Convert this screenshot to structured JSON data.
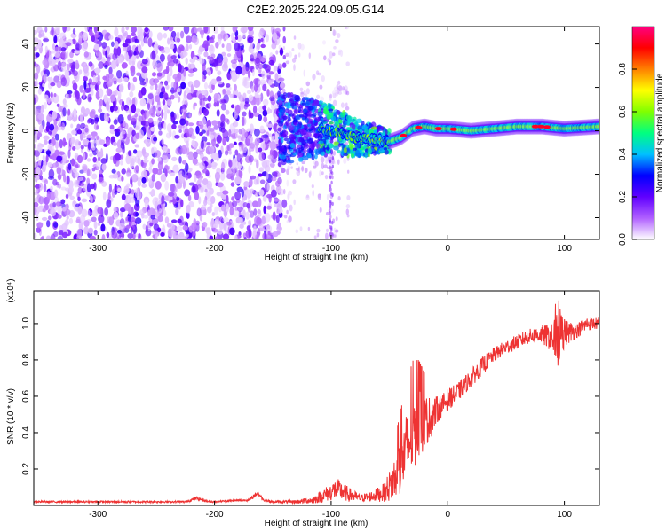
{
  "title": "C2E2.2025.224.09.05.G14",
  "chart_data": [
    {
      "type": "heatmap",
      "xlabel": "Height of straight line (km)",
      "ylabel": "Frequency (Hz)",
      "xlim": [
        -355,
        130
      ],
      "ylim": [
        -50,
        48
      ],
      "xticks": [
        -300,
        -200,
        -100,
        0,
        100
      ],
      "yticks": [
        -40,
        -20,
        0,
        20,
        40
      ],
      "colorbar": {
        "label": "Normalized spectral amplitude",
        "range": [
          0.0,
          1.0
        ],
        "ticks": [
          0.0,
          0.2,
          0.4,
          0.6,
          0.8
        ],
        "tick_labels": [
          "0.0",
          "0.2",
          "0.4",
          "0.6",
          "0.8"
        ],
        "colors": [
          "#ffffff",
          "#b060ff",
          "#6000ff",
          "#0000ff",
          "#00c0ff",
          "#00ff80",
          "#80ff00",
          "#ffff00",
          "#ff8000",
          "#ff0000",
          "#ff0080"
        ]
      },
      "regions": [
        {
          "x": [
            -355,
            -145
          ],
          "freq_spread": [
            -50,
            48
          ],
          "amplitude": [
            0.05,
            0.3
          ]
        },
        {
          "x": [
            -145,
            -50
          ],
          "freq_center": 0,
          "freq_spread": [
            -12,
            12
          ],
          "amplitude": [
            0.2,
            0.6
          ]
        },
        {
          "x": [
            -50,
            130
          ],
          "freq_center": [
            -4,
            4
          ],
          "freq_width": 3,
          "amplitude": [
            0.6,
            1.0
          ]
        }
      ],
      "ridge": {
        "x": [
          -110,
          -90,
          -80,
          -70,
          -60,
          -50,
          -40,
          -30,
          -20,
          -10,
          0,
          20,
          40,
          60,
          80,
          100,
          130
        ],
        "freq": [
          1,
          -1,
          -3,
          -4,
          -4,
          -5,
          -3,
          1,
          2,
          1,
          1,
          0,
          1,
          2,
          2,
          1,
          2
        ]
      }
    },
    {
      "type": "line",
      "xlabel": "Height of straight line (km)",
      "ylabel": "SNR (10 * v/v)",
      "y_multiplier": "(x10⁴)",
      "xlim": [
        -355,
        130
      ],
      "ylim": [
        0,
        1.18
      ],
      "xticks": [
        -300,
        -200,
        -100,
        0,
        100
      ],
      "yticks": [
        0.2,
        0.4,
        0.6,
        0.8,
        1.0
      ],
      "ytick_labels": [
        "0.2",
        "0.4",
        "0.6",
        "0.8",
        "1.0"
      ],
      "color": "#ee3333",
      "envelope": {
        "x": [
          -355,
          -300,
          -250,
          -225,
          -215,
          -205,
          -170,
          -163,
          -158,
          -150,
          -130,
          -115,
          -105,
          -95,
          -85,
          -75,
          -65,
          -55,
          -48,
          -42,
          -36,
          -30,
          -25,
          -20,
          -15,
          -10,
          -5,
          0,
          10,
          20,
          30,
          40,
          50,
          60,
          70,
          80,
          90,
          95,
          100,
          110,
          120,
          130
        ],
        "y": [
          0.02,
          0.02,
          0.02,
          0.02,
          0.04,
          0.02,
          0.03,
          0.07,
          0.03,
          0.02,
          0.02,
          0.03,
          0.06,
          0.09,
          0.06,
          0.04,
          0.05,
          0.07,
          0.12,
          0.2,
          0.3,
          0.4,
          0.44,
          0.46,
          0.48,
          0.52,
          0.55,
          0.58,
          0.63,
          0.7,
          0.77,
          0.83,
          0.87,
          0.9,
          0.93,
          0.94,
          0.92,
          0.94,
          0.95,
          0.96,
          1.0,
          1.0
        ],
        "noise": [
          0.005,
          0.005,
          0.005,
          0.005,
          0.01,
          0.005,
          0.006,
          0.015,
          0.006,
          0.006,
          0.01,
          0.02,
          0.04,
          0.06,
          0.04,
          0.02,
          0.03,
          0.05,
          0.1,
          0.15,
          0.2,
          0.22,
          0.2,
          0.15,
          0.12,
          0.08,
          0.06,
          0.06,
          0.05,
          0.05,
          0.05,
          0.04,
          0.04,
          0.04,
          0.04,
          0.05,
          0.08,
          0.2,
          0.08,
          0.04,
          0.04,
          0.03
        ]
      }
    }
  ]
}
